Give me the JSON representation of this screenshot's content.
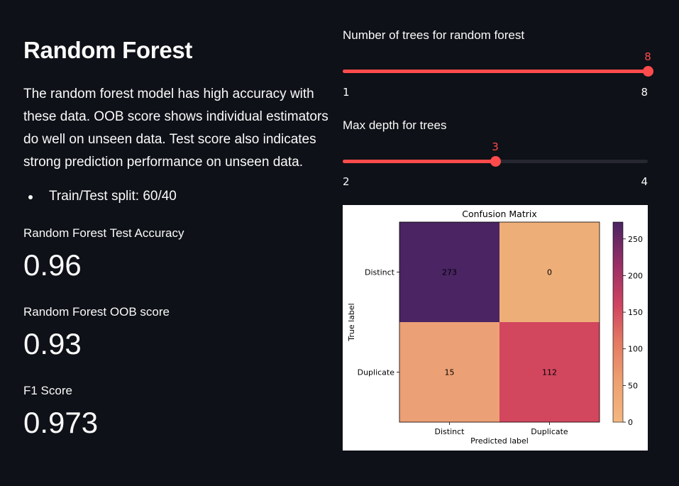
{
  "page": {
    "title": "Random Forest",
    "description": "The random forest model has high accuracy with these data. OOB score shows individual estimators do well on unseen data. Test score also indicates strong prediction performance on unseen data.",
    "bullets": [
      "Train/Test split: 60/40"
    ]
  },
  "metrics": [
    {
      "label": "Random Forest Test Accuracy",
      "value": "0.96"
    },
    {
      "label": "Random Forest OOB score",
      "value": "0.93"
    },
    {
      "label": "F1 Score",
      "value": "0.973"
    }
  ],
  "sliders": [
    {
      "label": "Number of trees for random forest",
      "min": 1,
      "max": 8,
      "value": 8,
      "min_text": "1",
      "max_text": "8",
      "value_text": "8"
    },
    {
      "label": "Max depth for trees",
      "min": 2,
      "max": 4,
      "value": 3,
      "min_text": "2",
      "max_text": "4",
      "value_text": "3"
    }
  ],
  "colors": {
    "background": "#0e1117",
    "accent": "#ff4b4b",
    "track": "#262730",
    "text": "#fafafa"
  },
  "chart_data": {
    "type": "heatmap",
    "title": "Confusion Matrix",
    "xlabel": "Predicted label",
    "ylabel": "True label",
    "x_categories": [
      "Distinct",
      "Duplicate"
    ],
    "y_categories": [
      "Distinct",
      "Duplicate"
    ],
    "values": [
      [
        273,
        0
      ],
      [
        15,
        112
      ]
    ],
    "colormap": "flare",
    "cell_colors": [
      [
        "#4a2463",
        "#eeae78"
      ],
      [
        "#eca075",
        "#d2465e"
      ]
    ],
    "colorbar": {
      "ticks": [
        0,
        50,
        100,
        150,
        200,
        250
      ],
      "range": [
        0,
        273
      ]
    }
  }
}
